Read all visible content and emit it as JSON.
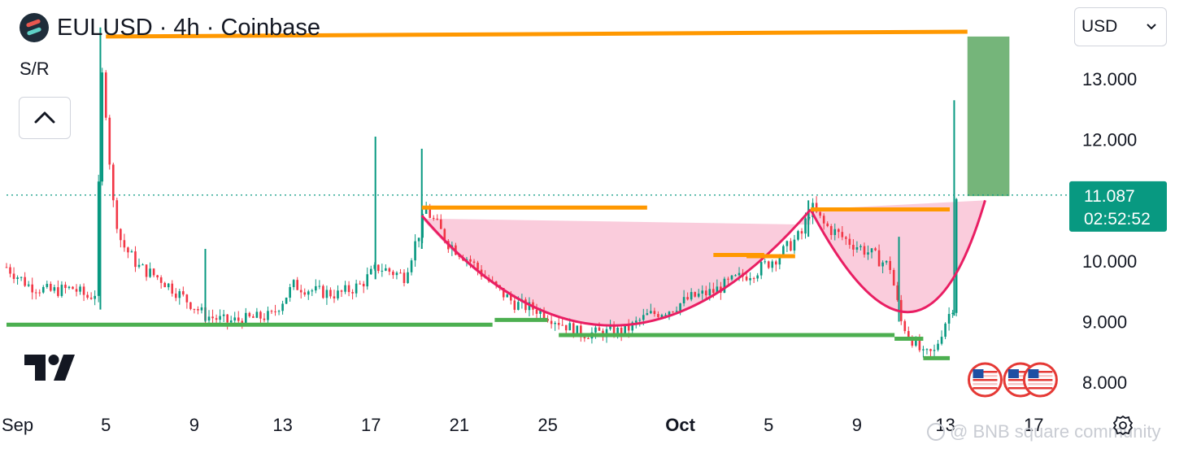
{
  "header": {
    "symbol_title": "EULUSD · 4h · Coinbase",
    "indicator_label": "S/R",
    "collapse_icon": "chevron-up-icon",
    "logo_icon": "eul-coin-logo-icon"
  },
  "currency_select": {
    "value": "USD",
    "icon": "chevron-down-icon"
  },
  "price_tag": {
    "price": "11.087",
    "countdown": "02:52:52",
    "color": "#089981"
  },
  "watermark": {
    "text": "@ BNB square community"
  },
  "colors": {
    "up": "#089981",
    "down": "#f23645",
    "resistance": "#ff9800",
    "support": "#4caf50",
    "cup_fill": "#f8bbd0",
    "cup_curve": "#e91e63",
    "target_box": "#66ad6b"
  },
  "chart_data": {
    "type": "candlestick",
    "xlabel": "",
    "ylabel": "",
    "y_ticks": [
      8.0,
      9.0,
      10.0,
      12.0,
      13.0
    ],
    "y_tick_labels": [
      "8.000",
      "9.000",
      "10.000",
      "12.000",
      "13.000"
    ],
    "ylim": [
      7.6,
      13.9
    ],
    "x_ticks": [
      {
        "day": 1,
        "label": "Sep",
        "bold": false
      },
      {
        "day": 5,
        "label": "5",
        "bold": false
      },
      {
        "day": 9,
        "label": "9",
        "bold": false
      },
      {
        "day": 13,
        "label": "13",
        "bold": false
      },
      {
        "day": 17,
        "label": "17",
        "bold": false
      },
      {
        "day": 21,
        "label": "21",
        "bold": false
      },
      {
        "day": 25,
        "label": "25",
        "bold": false
      },
      {
        "day": 31,
        "label": "Oct",
        "bold": true
      },
      {
        "day": 35,
        "label": "5",
        "bold": false
      },
      {
        "day": 39,
        "label": "9",
        "bold": false
      },
      {
        "day": 43,
        "label": "13",
        "bold": false
      },
      {
        "day": 47,
        "label": "17",
        "bold": false
      }
    ],
    "xlim_days": [
      0.5,
      48.5
    ],
    "last_price": 11.087,
    "path_points": [
      [
        0.5,
        9.9
      ],
      [
        1.5,
        9.6
      ],
      [
        2.5,
        9.5
      ],
      [
        3.5,
        9.55
      ],
      [
        4.2,
        9.4
      ],
      [
        4.6,
        9.5
      ],
      [
        4.75,
        13.3
      ],
      [
        5.0,
        12.5
      ],
      [
        5.3,
        11.0
      ],
      [
        5.7,
        10.3
      ],
      [
        6.5,
        9.9
      ],
      [
        7.5,
        9.7
      ],
      [
        8.5,
        9.4
      ],
      [
        9.5,
        9.1
      ],
      [
        10.5,
        9.0
      ],
      [
        11.5,
        9.05
      ],
      [
        12.5,
        9.1
      ],
      [
        13.5,
        9.6
      ],
      [
        14.5,
        9.5
      ],
      [
        15.5,
        9.45
      ],
      [
        16.5,
        9.6
      ],
      [
        17.3,
        9.9
      ],
      [
        18.5,
        9.75
      ],
      [
        19.2,
        10.5
      ],
      [
        19.5,
        10.85
      ],
      [
        20.5,
        10.3
      ],
      [
        21.5,
        10.0
      ],
      [
        22.5,
        9.6
      ],
      [
        23.5,
        9.3
      ],
      [
        24.5,
        9.2
      ],
      [
        25.5,
        9.0
      ],
      [
        26.5,
        8.8
      ],
      [
        27.5,
        8.82
      ],
      [
        28.5,
        8.85
      ],
      [
        29.5,
        9.1
      ],
      [
        30.5,
        9.2
      ],
      [
        31.5,
        9.4
      ],
      [
        32.5,
        9.5
      ],
      [
        33.5,
        9.7
      ],
      [
        34.5,
        9.85
      ],
      [
        35.5,
        10.1
      ],
      [
        36.5,
        10.45
      ],
      [
        36.9,
        10.9
      ],
      [
        37.5,
        10.6
      ],
      [
        38.5,
        10.35
      ],
      [
        39.5,
        10.15
      ],
      [
        40.5,
        9.9
      ],
      [
        41.0,
        9.0
      ],
      [
        41.5,
        8.7
      ],
      [
        42.0,
        8.45
      ],
      [
        42.5,
        8.5
      ],
      [
        43.0,
        9.0
      ],
      [
        43.4,
        9.3
      ],
      [
        43.5,
        11.087
      ]
    ],
    "spikes": [
      {
        "day": 4.75,
        "high": 13.85,
        "low": 9.2
      },
      {
        "day": 17.2,
        "high": 12.05,
        "low": 9.7
      },
      {
        "day": 19.3,
        "high": 11.85,
        "low": 10.2
      },
      {
        "day": 9.5,
        "high": 10.2,
        "low": 9.0
      },
      {
        "day": 43.4,
        "high": 12.65,
        "low": 9.1
      },
      {
        "day": 36.8,
        "high": 11.0,
        "low": 10.4
      },
      {
        "day": 40.9,
        "high": 10.4,
        "low": 9.0
      }
    ],
    "resistance_lines": [
      {
        "x1": 5.0,
        "x2": 44.0,
        "y1": 13.7,
        "y2": 13.78
      },
      {
        "x1": 19.3,
        "x2": 29.5,
        "y1": 10.88,
        "y2": 10.88
      },
      {
        "x1": 32.5,
        "x2": 34.8,
        "y1": 10.1,
        "y2": 10.1
      },
      {
        "x1": 34.0,
        "x2": 36.2,
        "y1": 10.08,
        "y2": 10.08
      },
      {
        "x1": 36.9,
        "x2": 43.2,
        "y1": 10.85,
        "y2": 10.85
      }
    ],
    "support_lines": [
      {
        "x1": 0.5,
        "x2": 22.5,
        "y1": 8.95,
        "y2": 8.95
      },
      {
        "x1": 22.6,
        "x2": 25.0,
        "y1": 9.03,
        "y2": 9.03
      },
      {
        "x1": 25.5,
        "x2": 40.7,
        "y1": 8.78,
        "y2": 8.78
      },
      {
        "x1": 40.7,
        "x2": 42.0,
        "y1": 8.72,
        "y2": 8.72
      },
      {
        "x1": 42.0,
        "x2": 43.2,
        "y1": 8.4,
        "y2": 8.4
      }
    ],
    "cup": {
      "fill_top_left": [
        19.3,
        10.7
      ],
      "fill_top_right": [
        36.9,
        10.6
      ],
      "fill_top_right_2": [
        44.8,
        11.0
      ],
      "curve_left": [
        19.3,
        10.75
      ],
      "curve_bottom": [
        28.0,
        8.55
      ],
      "curve_right": [
        36.9,
        10.85
      ],
      "handle_bottom": [
        41.9,
        8.6
      ],
      "handle_right": [
        44.8,
        11.0
      ]
    },
    "target_box": {
      "x1": 44.0,
      "x2": 45.9,
      "y1": 11.07,
      "y2": 13.7
    },
    "events": [
      {
        "day": 44.8,
        "icon": "us-flag-icon"
      },
      {
        "day": 46.4,
        "icon": "us-flag-icon"
      },
      {
        "day": 47.3,
        "icon": "us-flag-icon"
      }
    ]
  }
}
